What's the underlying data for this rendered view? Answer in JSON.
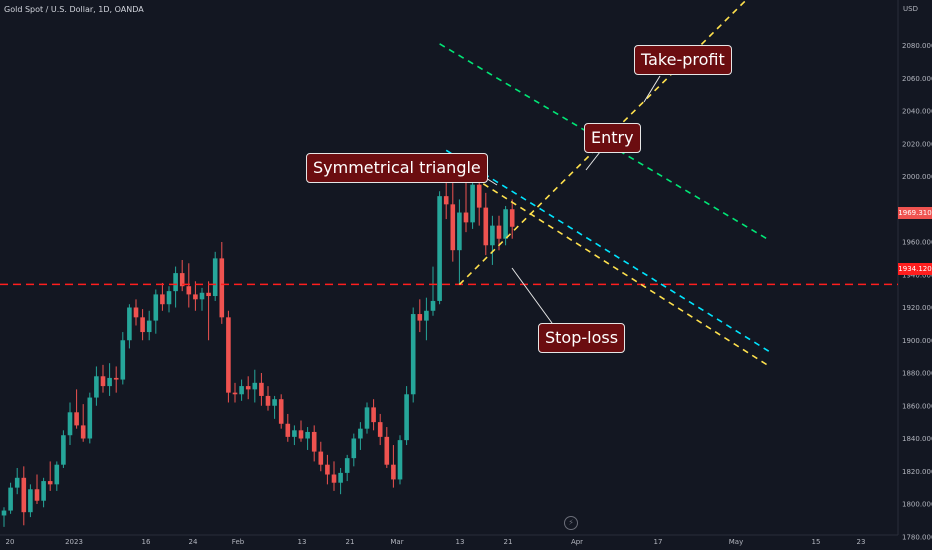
{
  "header": {
    "symbol": "Gold Spot / U.S. Dollar, 1D, OANDA",
    "currency": "USD"
  },
  "annotations": {
    "symmetrical_triangle": "Symmetrical triangle",
    "entry": "Entry",
    "take_profit": "Take-profit",
    "stop_loss": "Stop-loss"
  },
  "price_tags": {
    "last_price": "1969.310",
    "stop_level": "1934.120"
  },
  "colors": {
    "background": "#131722",
    "up": "#26a69a",
    "down": "#ef5350",
    "stop_line": "#ff1e1e",
    "triangle_lines": "#ffe14d",
    "cyan_line": "#00e5ff",
    "green_line": "#00e676",
    "callout_bg": "#6b0d10",
    "last_price_tag": "#ef5350",
    "stop_tag": "#ff1e1e"
  },
  "chart_data": {
    "type": "candlestick",
    "symbol": "Gold Spot / U.S. Dollar",
    "timeframe": "1D",
    "source": "OANDA",
    "currency": "USD",
    "ylim": [
      1775,
      2120
    ],
    "y_ticks": [
      1780,
      1800,
      1820,
      1840,
      1860,
      1880,
      1900,
      1920,
      1940,
      1960,
      1980,
      2000,
      2020,
      2040,
      2060,
      2080
    ],
    "x_ticks": [
      "20",
      "2023",
      "16",
      "24",
      "Feb",
      "13",
      "21",
      "Mar",
      "13",
      "21",
      "Apr",
      "17",
      "May",
      "15",
      "23"
    ],
    "candles": [
      {
        "o": 1793,
        "h": 1798,
        "l": 1786,
        "c": 1796
      },
      {
        "o": 1796,
        "h": 1813,
        "l": 1794,
        "c": 1810
      },
      {
        "o": 1810,
        "h": 1822,
        "l": 1806,
        "c": 1816
      },
      {
        "o": 1816,
        "h": 1823,
        "l": 1787,
        "c": 1795
      },
      {
        "o": 1795,
        "h": 1812,
        "l": 1792,
        "c": 1809
      },
      {
        "o": 1809,
        "h": 1818,
        "l": 1800,
        "c": 1802
      },
      {
        "o": 1802,
        "h": 1816,
        "l": 1798,
        "c": 1814
      },
      {
        "o": 1814,
        "h": 1826,
        "l": 1808,
        "c": 1812
      },
      {
        "o": 1812,
        "h": 1826,
        "l": 1808,
        "c": 1824
      },
      {
        "o": 1824,
        "h": 1845,
        "l": 1822,
        "c": 1842
      },
      {
        "o": 1842,
        "h": 1862,
        "l": 1836,
        "c": 1856
      },
      {
        "o": 1856,
        "h": 1870,
        "l": 1846,
        "c": 1848
      },
      {
        "o": 1848,
        "h": 1861,
        "l": 1838,
        "c": 1840
      },
      {
        "o": 1840,
        "h": 1868,
        "l": 1837,
        "c": 1865
      },
      {
        "o": 1865,
        "h": 1884,
        "l": 1860,
        "c": 1878
      },
      {
        "o": 1878,
        "h": 1885,
        "l": 1868,
        "c": 1872
      },
      {
        "o": 1872,
        "h": 1886,
        "l": 1866,
        "c": 1877
      },
      {
        "o": 1877,
        "h": 1884,
        "l": 1868,
        "c": 1876
      },
      {
        "o": 1876,
        "h": 1905,
        "l": 1873,
        "c": 1900
      },
      {
        "o": 1900,
        "h": 1922,
        "l": 1895,
        "c": 1920
      },
      {
        "o": 1920,
        "h": 1925,
        "l": 1909,
        "c": 1914
      },
      {
        "o": 1914,
        "h": 1919,
        "l": 1900,
        "c": 1905
      },
      {
        "o": 1905,
        "h": 1918,
        "l": 1900,
        "c": 1912
      },
      {
        "o": 1912,
        "h": 1931,
        "l": 1904,
        "c": 1928
      },
      {
        "o": 1928,
        "h": 1935,
        "l": 1918,
        "c": 1922
      },
      {
        "o": 1922,
        "h": 1933,
        "l": 1917,
        "c": 1930
      },
      {
        "o": 1930,
        "h": 1945,
        "l": 1920,
        "c": 1941
      },
      {
        "o": 1941,
        "h": 1949,
        "l": 1930,
        "c": 1933
      },
      {
        "o": 1933,
        "h": 1947,
        "l": 1920,
        "c": 1928
      },
      {
        "o": 1928,
        "h": 1936,
        "l": 1918,
        "c": 1925
      },
      {
        "o": 1925,
        "h": 1932,
        "l": 1918,
        "c": 1929
      },
      {
        "o": 1929,
        "h": 1936,
        "l": 1900,
        "c": 1927
      },
      {
        "o": 1927,
        "h": 1954,
        "l": 1924,
        "c": 1950
      },
      {
        "o": 1950,
        "h": 1960,
        "l": 1910,
        "c": 1914
      },
      {
        "o": 1914,
        "h": 1918,
        "l": 1862,
        "c": 1868
      },
      {
        "o": 1868,
        "h": 1874,
        "l": 1862,
        "c": 1867
      },
      {
        "o": 1867,
        "h": 1876,
        "l": 1863,
        "c": 1872
      },
      {
        "o": 1872,
        "h": 1878,
        "l": 1864,
        "c": 1870
      },
      {
        "o": 1870,
        "h": 1882,
        "l": 1862,
        "c": 1874
      },
      {
        "o": 1874,
        "h": 1880,
        "l": 1860,
        "c": 1866
      },
      {
        "o": 1866,
        "h": 1872,
        "l": 1857,
        "c": 1860
      },
      {
        "o": 1860,
        "h": 1866,
        "l": 1852,
        "c": 1864
      },
      {
        "o": 1864,
        "h": 1867,
        "l": 1846,
        "c": 1849
      },
      {
        "o": 1849,
        "h": 1855,
        "l": 1838,
        "c": 1841
      },
      {
        "o": 1841,
        "h": 1848,
        "l": 1836,
        "c": 1845
      },
      {
        "o": 1845,
        "h": 1851,
        "l": 1838,
        "c": 1840
      },
      {
        "o": 1840,
        "h": 1847,
        "l": 1833,
        "c": 1844
      },
      {
        "o": 1844,
        "h": 1848,
        "l": 1826,
        "c": 1832
      },
      {
        "o": 1832,
        "h": 1838,
        "l": 1820,
        "c": 1824
      },
      {
        "o": 1824,
        "h": 1830,
        "l": 1812,
        "c": 1818
      },
      {
        "o": 1818,
        "h": 1826,
        "l": 1808,
        "c": 1813
      },
      {
        "o": 1813,
        "h": 1822,
        "l": 1806,
        "c": 1819
      },
      {
        "o": 1819,
        "h": 1830,
        "l": 1814,
        "c": 1828
      },
      {
        "o": 1828,
        "h": 1843,
        "l": 1823,
        "c": 1840
      },
      {
        "o": 1840,
        "h": 1850,
        "l": 1833,
        "c": 1846
      },
      {
        "o": 1846,
        "h": 1862,
        "l": 1843,
        "c": 1859
      },
      {
        "o": 1859,
        "h": 1864,
        "l": 1845,
        "c": 1850
      },
      {
        "o": 1850,
        "h": 1855,
        "l": 1836,
        "c": 1841
      },
      {
        "o": 1841,
        "h": 1847,
        "l": 1822,
        "c": 1824
      },
      {
        "o": 1824,
        "h": 1836,
        "l": 1810,
        "c": 1815
      },
      {
        "o": 1815,
        "h": 1842,
        "l": 1812,
        "c": 1839
      },
      {
        "o": 1839,
        "h": 1872,
        "l": 1836,
        "c": 1867
      },
      {
        "o": 1867,
        "h": 1920,
        "l": 1862,
        "c": 1916
      },
      {
        "o": 1916,
        "h": 1925,
        "l": 1905,
        "c": 1912
      },
      {
        "o": 1912,
        "h": 1926,
        "l": 1900,
        "c": 1918
      },
      {
        "o": 1918,
        "h": 1945,
        "l": 1915,
        "c": 1924
      },
      {
        "o": 1924,
        "h": 1991,
        "l": 1922,
        "c": 1988
      },
      {
        "o": 1988,
        "h": 2010,
        "l": 1974,
        "c": 1983
      },
      {
        "o": 1983,
        "h": 1996,
        "l": 1948,
        "c": 1955
      },
      {
        "o": 1955,
        "h": 1986,
        "l": 1934,
        "c": 1978
      },
      {
        "o": 1978,
        "h": 1996,
        "l": 1966,
        "c": 1972
      },
      {
        "o": 1972,
        "h": 2002,
        "l": 1968,
        "c": 1995
      },
      {
        "o": 1995,
        "h": 1999,
        "l": 1970,
        "c": 1981
      },
      {
        "o": 1981,
        "h": 1990,
        "l": 1952,
        "c": 1958
      },
      {
        "o": 1958,
        "h": 1976,
        "l": 1946,
        "c": 1970
      },
      {
        "o": 1970,
        "h": 1976,
        "l": 1955,
        "c": 1962
      },
      {
        "o": 1962,
        "h": 1982,
        "l": 1958,
        "c": 1980
      },
      {
        "o": 1980,
        "h": 1986,
        "l": 1962,
        "c": 1969.31
      }
    ],
    "levels": [
      {
        "price": 1934.12,
        "style": "dashed"
      }
    ],
    "triangle": {
      "upper_from": {
        "bar": 67,
        "price": 2010
      },
      "upper_to": {
        "bar": 116,
        "price": 1884
      },
      "lower_from": {
        "bar": 69,
        "price": 1934
      },
      "lower_to": {
        "bar": 116,
        "price": 2122
      }
    },
    "cyan_line": {
      "from": {
        "bar": 67,
        "price": 2016
      },
      "to": {
        "bar": 116,
        "price": 1893
      }
    },
    "green_line": {
      "from": {
        "bar": 66,
        "price": 2081
      },
      "to": {
        "bar": 116,
        "price": 1961
      }
    }
  }
}
